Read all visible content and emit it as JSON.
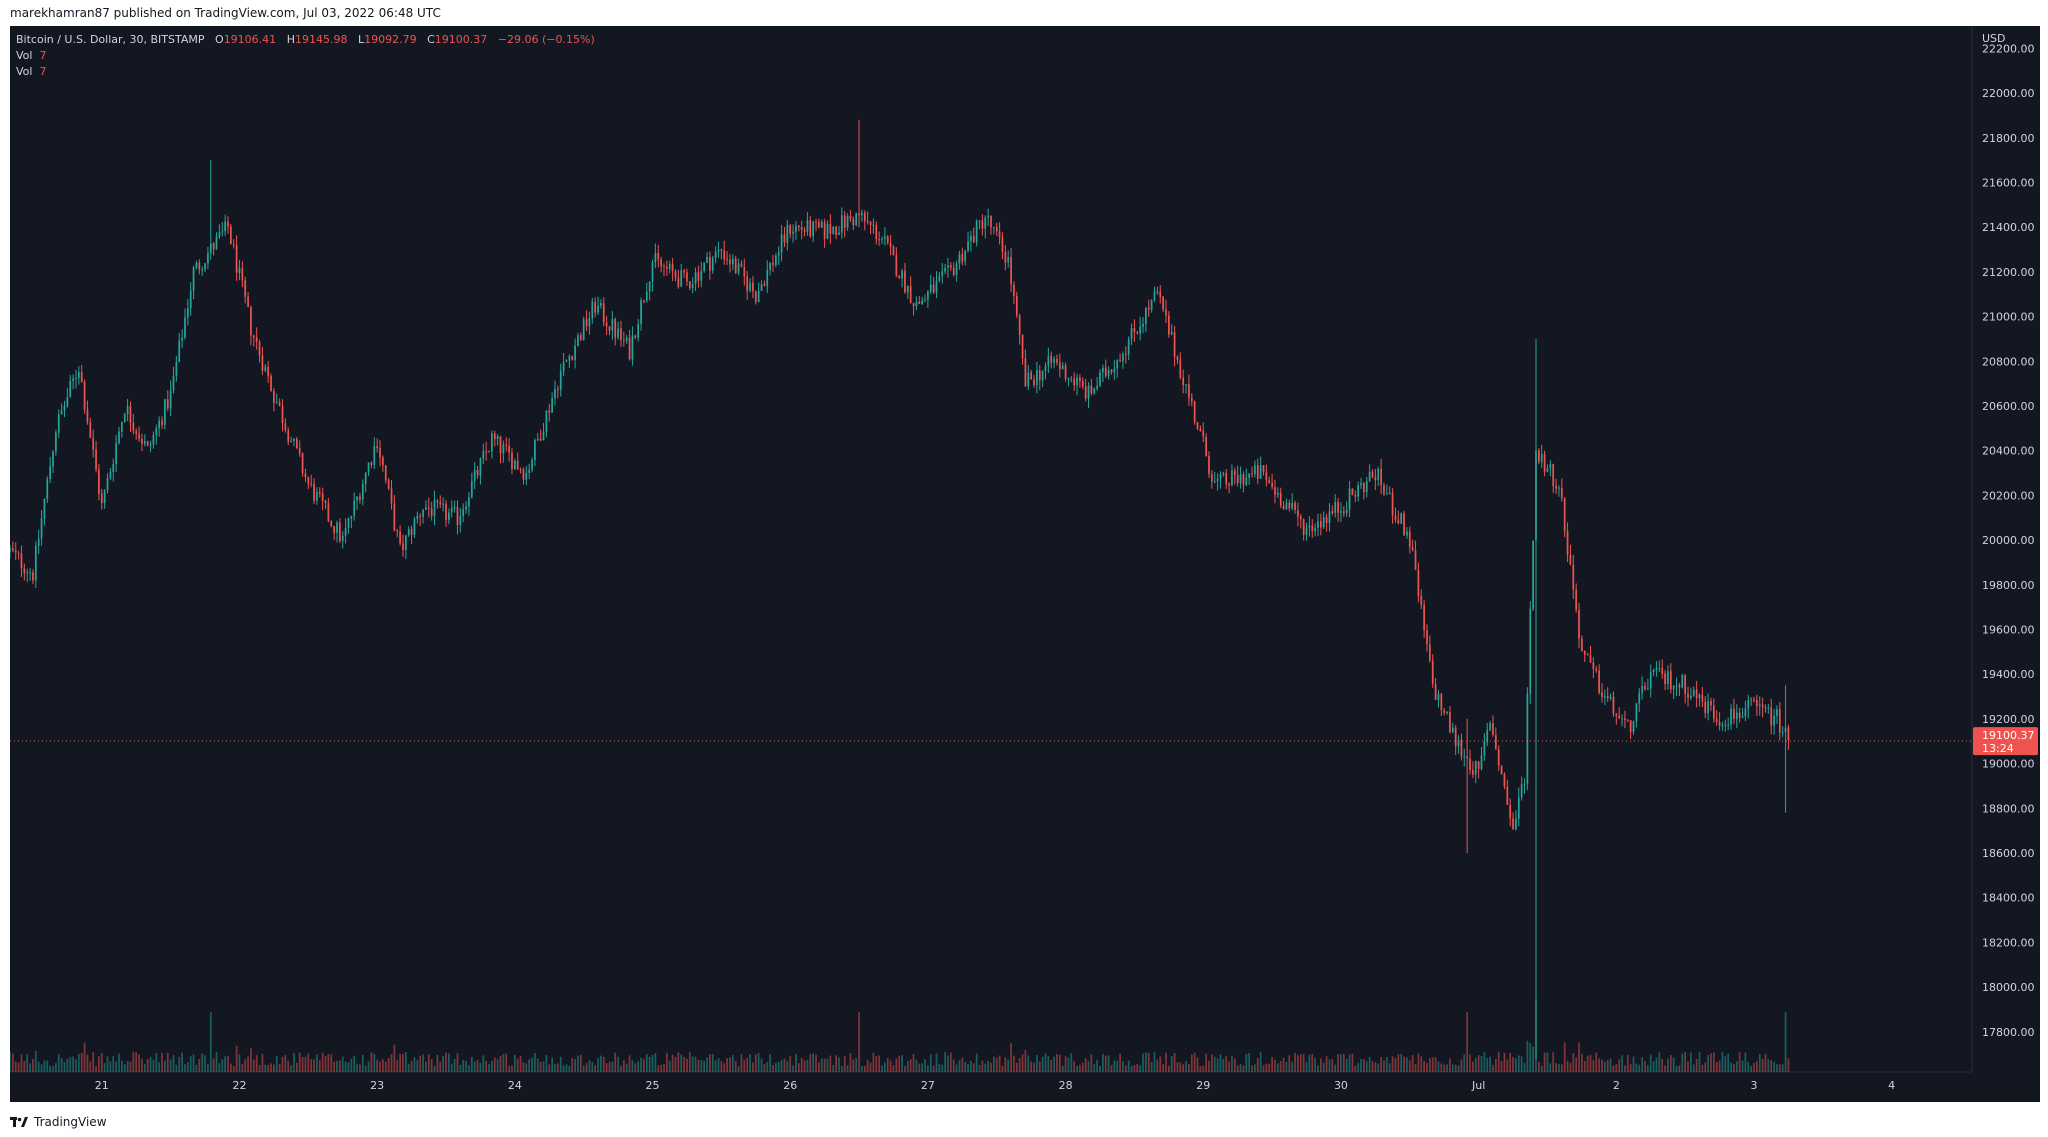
{
  "header": {
    "published": "marekhamran87 published on TradingView.com, Jul 03, 2022 06:48 UTC"
  },
  "legend": {
    "symbol": "Bitcoin / U.S. Dollar, 30, BITSTAMP",
    "o_label": "O",
    "o": "19106.41",
    "h_label": "H",
    "h": "19145.98",
    "l_label": "L",
    "l": "19092.79",
    "c_label": "C",
    "c": "19100.37",
    "change": "−29.06 (−0.15%)",
    "vol_rows": [
      {
        "label": "Vol",
        "value": "7"
      },
      {
        "label": "Vol",
        "value": "7"
      }
    ]
  },
  "footer": {
    "brand": "TradingView"
  },
  "colors": {
    "background": "#131722",
    "up": "#26a69a",
    "down": "#ef5350",
    "text": "#d1d4dc",
    "price_line": "#ef5350"
  },
  "chart_data": {
    "type": "candlestick",
    "currency": "USD",
    "timeframe": "30",
    "y_axis": {
      "unit": "USD",
      "ylim": [
        17620,
        22300
      ],
      "ticks": [
        "22200.00",
        "22000.00",
        "21800.00",
        "21600.00",
        "21400.00",
        "21200.00",
        "21000.00",
        "20800.00",
        "20600.00",
        "20400.00",
        "20200.00",
        "20000.00",
        "19800.00",
        "19600.00",
        "19400.00",
        "19200.00",
        "19000.00",
        "18800.00",
        "18600.00",
        "18400.00",
        "18200.00",
        "18000.00",
        "17800.00"
      ]
    },
    "x_axis": {
      "ticks": [
        "21",
        "22",
        "23",
        "24",
        "25",
        "26",
        "27",
        "28",
        "29",
        "30",
        "Jul",
        "2",
        "3",
        "4"
      ],
      "xlim": [
        "2022-06-20T08:00",
        "2022-07-04T14:00"
      ]
    },
    "current_price": {
      "value": 19100.37,
      "label": "19100.37",
      "countdown": "13:24"
    },
    "grid": false,
    "price_path": [
      [
        "2022-06-20T08:00",
        19950
      ],
      [
        "2022-06-20T12:00",
        19850
      ],
      [
        "2022-06-20T16:00",
        20500
      ],
      [
        "2022-06-20T20:00",
        20780
      ],
      [
        "2022-06-21T00:00",
        20150
      ],
      [
        "2022-06-21T04:00",
        20600
      ],
      [
        "2022-06-21T08:00",
        20400
      ],
      [
        "2022-06-21T12:00",
        20650
      ],
      [
        "2022-06-21T16:00",
        21200
      ],
      [
        "2022-06-21T22:00",
        21400
      ],
      [
        "2022-06-22T02:00",
        20950
      ],
      [
        "2022-06-22T06:00",
        20650
      ],
      [
        "2022-06-22T12:00",
        20250
      ],
      [
        "2022-06-22T18:00",
        20000
      ],
      [
        "2022-06-23T00:00",
        20450
      ],
      [
        "2022-06-23T04:00",
        19950
      ],
      [
        "2022-06-23T08:00",
        20150
      ],
      [
        "2022-06-23T14:00",
        20100
      ],
      [
        "2022-06-23T20:00",
        20450
      ],
      [
        "2022-06-24T02:00",
        20300
      ],
      [
        "2022-06-24T08:00",
        20750
      ],
      [
        "2022-06-24T14:00",
        21050
      ],
      [
        "2022-06-24T20:00",
        20850
      ],
      [
        "2022-06-25T00:00",
        21250
      ],
      [
        "2022-06-25T06:00",
        21150
      ],
      [
        "2022-06-25T12:00",
        21300
      ],
      [
        "2022-06-25T18:00",
        21100
      ],
      [
        "2022-06-26T00:00",
        21400
      ],
      [
        "2022-06-26T06:00",
        21380
      ],
      [
        "2022-06-26T12:00",
        21450
      ],
      [
        "2022-06-26T16:00",
        21350
      ],
      [
        "2022-06-26T22:00",
        21050
      ],
      [
        "2022-06-27T04:00",
        21200
      ],
      [
        "2022-06-27T10:00",
        21450
      ],
      [
        "2022-06-27T14:00",
        21250
      ],
      [
        "2022-06-27T17:00",
        20700
      ],
      [
        "2022-06-27T22:00",
        20800
      ],
      [
        "2022-06-28T04:00",
        20650
      ],
      [
        "2022-06-28T10:00",
        20850
      ],
      [
        "2022-06-28T16:00",
        21100
      ],
      [
        "2022-06-28T22:00",
        20600
      ],
      [
        "2022-06-29T02:00",
        20250
      ],
      [
        "2022-06-29T10:00",
        20300
      ],
      [
        "2022-06-29T18:00",
        20050
      ],
      [
        "2022-06-30T00:00",
        20150
      ],
      [
        "2022-06-30T06:00",
        20300
      ],
      [
        "2022-06-30T12:00",
        20000
      ],
      [
        "2022-06-30T16:00",
        19350
      ],
      [
        "2022-06-30T20:00",
        19100
      ],
      [
        "2022-07-01T00:00",
        18950
      ],
      [
        "2022-07-01T02:00",
        19200
      ],
      [
        "2022-07-01T06:00",
        18700
      ],
      [
        "2022-07-01T08:00",
        18950
      ],
      [
        "2022-07-01T10:00",
        20400
      ],
      [
        "2022-07-01T14:00",
        20250
      ],
      [
        "2022-07-01T18:00",
        19500
      ],
      [
        "2022-07-01T22:00",
        19300
      ],
      [
        "2022-07-02T02:00",
        19150
      ],
      [
        "2022-07-02T06:00",
        19400
      ],
      [
        "2022-07-02T12:00",
        19350
      ],
      [
        "2022-07-02T18:00",
        19200
      ],
      [
        "2022-07-03T00:00",
        19250
      ],
      [
        "2022-07-03T04:00",
        19200
      ],
      [
        "2022-07-03T06:00",
        19100
      ]
    ],
    "spikes": [
      {
        "t": "2022-06-21T19:00",
        "high": 21700,
        "low": 21300
      },
      {
        "t": "2022-06-26T12:00",
        "high": 21880,
        "low": 21400
      },
      {
        "t": "2022-06-30T22:00",
        "high": 19200,
        "low": 18600
      },
      {
        "t": "2022-07-01T10:00",
        "high": 20900,
        "low": 17680
      },
      {
        "t": "2022-07-03T05:30",
        "high": 19350,
        "low": 18780
      }
    ]
  }
}
